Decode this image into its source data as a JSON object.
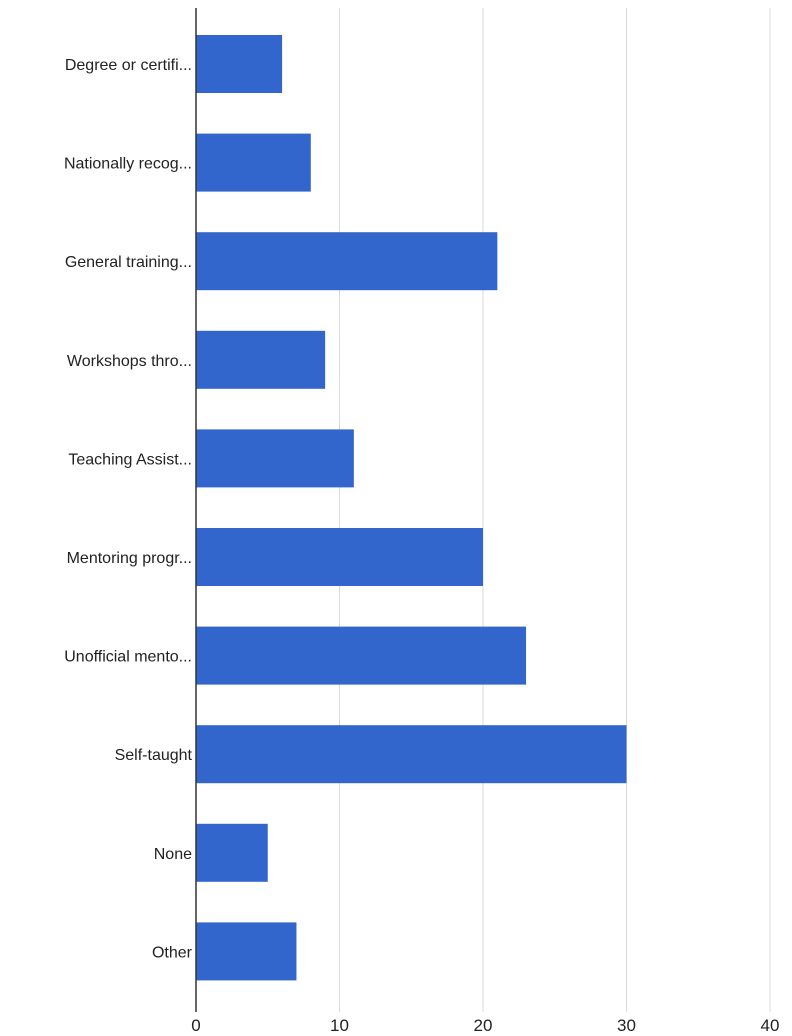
{
  "chart_data": {
    "type": "bar",
    "orientation": "horizontal",
    "title": "",
    "xlabel": "",
    "ylabel": "",
    "categories": [
      "Degree or certifi...",
      "Nationally recog...",
      "General training...",
      "Workshops thro...",
      "Teaching Assist...",
      "Mentoring progr...",
      "Unofficial mento...",
      "Self-taught",
      "None",
      "Other"
    ],
    "values": [
      6,
      8,
      21,
      9,
      11,
      20,
      23,
      30,
      5,
      7
    ],
    "xlim": [
      0,
      40
    ],
    "x_ticks": [
      0,
      10,
      20,
      30,
      40
    ],
    "x_tick_labels": [
      "0",
      "10",
      "20",
      "30",
      "40"
    ],
    "grid": "vertical",
    "legend": "none",
    "colors": {
      "bar": "#3366cc",
      "grid": "#d9d9d9",
      "axis": "#333333",
      "text": "#222222",
      "background": "#ffffff"
    }
  }
}
